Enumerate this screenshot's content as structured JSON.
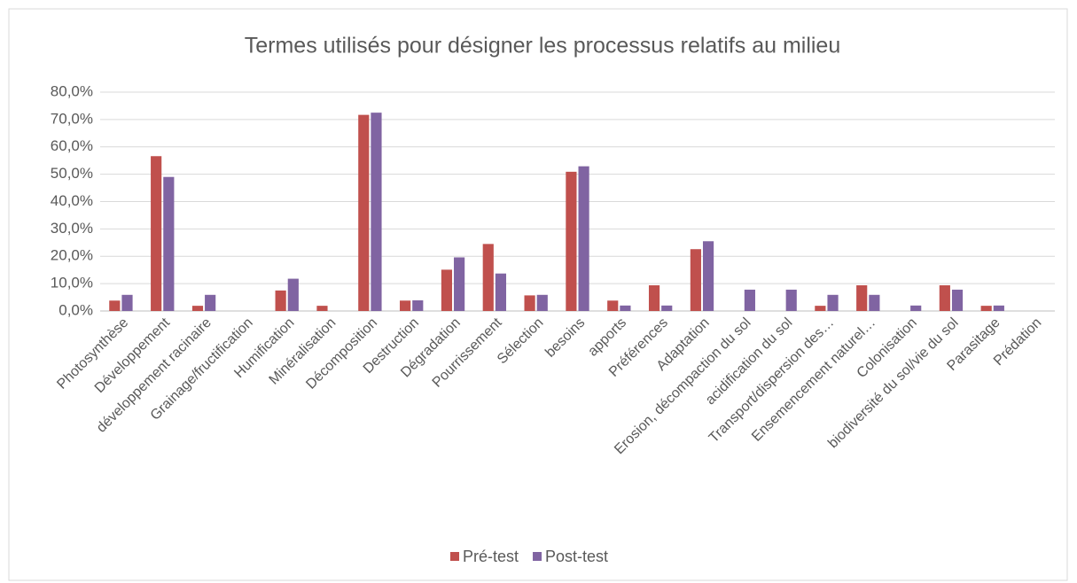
{
  "chart_data": {
    "type": "bar",
    "title": "Termes utilisés pour désigner les processus relatifs au milieu",
    "categories": [
      "Photosynthèse",
      "Développement",
      "développement racinaire",
      "Grainage/fructification",
      "Humification",
      "Minéralisation",
      "Décomposition",
      "Destruction",
      "Dégradation",
      "Pourrissement",
      "Sélection",
      "besoins",
      "apports",
      "Préférences",
      "Adaptation",
      "Erosion, décompaction du sol",
      "acidification du sol",
      "Transport/dispersion des…",
      "Ensemencement naturel…",
      "Colonisation",
      "biodiversité du sol/vie du sol",
      "Parasitage",
      "Prédation"
    ],
    "series": [
      {
        "name": "Pré-test",
        "color": "#c0504d",
        "values": [
          3.8,
          56.6,
          1.9,
          0,
          7.5,
          1.9,
          71.7,
          3.8,
          15.1,
          24.5,
          5.7,
          50.9,
          3.8,
          9.4,
          22.6,
          0,
          0,
          1.9,
          9.4,
          0,
          9.4,
          1.9,
          0
        ]
      },
      {
        "name": "Post-test",
        "color": "#8064a2",
        "values": [
          5.9,
          49.0,
          5.9,
          0,
          11.8,
          0,
          72.5,
          3.9,
          19.6,
          13.7,
          5.9,
          52.9,
          2.0,
          2.0,
          25.5,
          7.8,
          7.8,
          5.9,
          5.9,
          2.0,
          7.8,
          2.0,
          0
        ]
      }
    ],
    "ylim": [
      0,
      80
    ],
    "yticks": [
      {
        "value": 0,
        "label": "0,0%"
      },
      {
        "value": 10,
        "label": "10,0%"
      },
      {
        "value": 20,
        "label": "20,0%"
      },
      {
        "value": 30,
        "label": "30,0%"
      },
      {
        "value": 40,
        "label": "40,0%"
      },
      {
        "value": 50,
        "label": "50,0%"
      },
      {
        "value": 60,
        "label": "60,0%"
      },
      {
        "value": 70,
        "label": "70,0%"
      },
      {
        "value": 80,
        "label": "80,0%"
      }
    ],
    "grid": true,
    "legend": "bottom"
  }
}
